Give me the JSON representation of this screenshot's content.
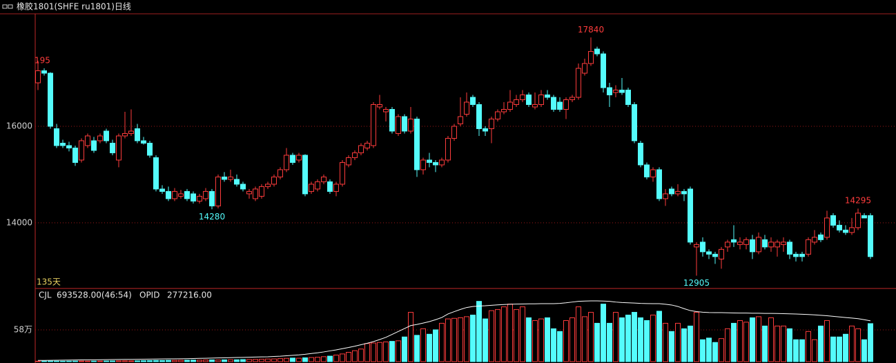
{
  "chart_data": {
    "type": "candlestick",
    "title": "橡胶1801(SHFE ru1801)日线",
    "left_label": "195",
    "period_label": "135天",
    "open": [
      16900,
      17150,
      17100,
      15950,
      15650,
      15600,
      15550,
      15300,
      15600,
      15700,
      15700,
      15900,
      15650,
      15300,
      15800,
      15850,
      15950,
      15700,
      15650,
      15350,
      14700,
      14650,
      14500,
      14550,
      14650,
      14600,
      14450,
      14500,
      14650,
      14350,
      14950,
      14900,
      14900,
      14800,
      14600,
      14500,
      14550,
      14750,
      14800,
      14950,
      15100,
      15400,
      15300,
      15400,
      14650,
      14700,
      14850,
      14850,
      14650,
      14800,
      15200,
      15350,
      15450,
      15550,
      15600,
      16400,
      16300,
      16350,
      15850,
      16200,
      15900,
      16150,
      15100,
      15300,
      15250,
      15200,
      15300,
      15750,
      16050,
      16250,
      16600,
      16450,
      15950,
      15950,
      16150,
      16300,
      16350,
      16450,
      16550,
      16650,
      16400,
      16450,
      16650,
      16600,
      16500,
      16350,
      16550,
      16600,
      17100,
      17300,
      17600,
      17500,
      16800,
      16700,
      16750,
      16750,
      16450,
      15650,
      15200,
      14950,
      15100,
      14500,
      14700,
      14600,
      14650,
      14700,
      13500,
      13600,
      13400,
      13350,
      13250,
      13500,
      13650,
      13550,
      13550,
      13650,
      13400,
      13650,
      13500,
      13500,
      13550,
      13600,
      13350,
      13350,
      13350,
      13600,
      13750,
      13700,
      14150,
      13950,
      13850,
      13800,
      13900,
      14150,
      14150
    ],
    "high": [
      17357,
      17200,
      17120,
      16050,
      15720,
      15680,
      15600,
      15750,
      15850,
      15780,
      15850,
      15950,
      15720,
      15850,
      16300,
      16350,
      16050,
      15780,
      15700,
      15400,
      14780,
      14750,
      14720,
      14680,
      14700,
      14650,
      14600,
      14720,
      14700,
      15000,
      15050,
      15100,
      15000,
      14850,
      14700,
      14750,
      14800,
      14850,
      15000,
      15150,
      15550,
      15450,
      15450,
      15420,
      14850,
      14900,
      15000,
      14900,
      14850,
      15300,
      15400,
      15500,
      15650,
      15700,
      16500,
      16650,
      16400,
      16400,
      16250,
      16250,
      16400,
      16200,
      15350,
      15450,
      15300,
      15350,
      15800,
      16050,
      16600,
      16700,
      16650,
      16500,
      16000,
      16200,
      16350,
      16500,
      16750,
      16650,
      16750,
      16700,
      16700,
      16750,
      16750,
      16650,
      16600,
      16600,
      16650,
      17300,
      17400,
      17840,
      17650,
      17550,
      16900,
      16850,
      17000,
      16800,
      16500,
      15700,
      15250,
      15150,
      15150,
      14700,
      14750,
      14800,
      14700,
      14750,
      13600,
      13700,
      13450,
      13400,
      13500,
      13650,
      13950,
      13700,
      13700,
      13750,
      13800,
      13750,
      13700,
      13650,
      13700,
      13650,
      13400,
      13400,
      13700,
      13850,
      13800,
      14250,
      14200,
      14050,
      13950,
      14100,
      14295,
      14200,
      14200
    ],
    "low": [
      16750,
      17050,
      15950,
      15550,
      15550,
      15480,
      15180,
      15250,
      15550,
      15450,
      15650,
      15650,
      15400,
      15150,
      15750,
      15800,
      15650,
      15620,
      15350,
      14650,
      14600,
      14450,
      14450,
      14500,
      14450,
      14400,
      14400,
      14450,
      14280,
      14300,
      14850,
      14850,
      14750,
      14650,
      14500,
      14450,
      14500,
      14700,
      14750,
      14900,
      15050,
      15200,
      15250,
      14550,
      14600,
      14650,
      14800,
      14600,
      14550,
      14750,
      15150,
      15300,
      15400,
      15500,
      15550,
      16350,
      16100,
      15850,
      15800,
      15850,
      15850,
      14950,
      15000,
      15150,
      15050,
      15150,
      15250,
      15700,
      16000,
      16200,
      16400,
      15800,
      15800,
      15650,
      16100,
      16250,
      16300,
      16400,
      16500,
      16400,
      16350,
      16400,
      16550,
      16300,
      16300,
      16150,
      16500,
      16550,
      17050,
      17250,
      17450,
      16700,
      16400,
      16600,
      16650,
      16400,
      15650,
      15150,
      14900,
      14850,
      14450,
      14350,
      14550,
      14550,
      14450,
      13550,
      12905,
      13300,
      13250,
      13150,
      13050,
      13400,
      13500,
      13450,
      13450,
      13250,
      13350,
      13450,
      13400,
      13300,
      13400,
      13250,
      13200,
      13200,
      13300,
      13550,
      13600,
      13650,
      13900,
      13800,
      13750,
      13750,
      13850,
      14100,
      13250
    ],
    "close": [
      17150,
      17100,
      16000,
      15600,
      15600,
      15550,
      15250,
      15700,
      15800,
      15500,
      15800,
      15700,
      15450,
      15800,
      15850,
      15900,
      15700,
      15650,
      15400,
      14700,
      14650,
      14500,
      14650,
      14600,
      14500,
      14450,
      14550,
      14650,
      14350,
      14950,
      14900,
      14950,
      14800,
      14700,
      14650,
      14700,
      14750,
      14800,
      14950,
      15100,
      15400,
      15250,
      15400,
      14600,
      14800,
      14850,
      14950,
      14650,
      14800,
      15250,
      15350,
      15450,
      15600,
      15650,
      16450,
      16450,
      16350,
      15900,
      16200,
      15900,
      16150,
      15100,
      15300,
      15250,
      15200,
      15300,
      15750,
      16000,
      16200,
      16500,
      16450,
      15950,
      15900,
      16150,
      16300,
      16350,
      16500,
      16550,
      16650,
      16450,
      16450,
      16650,
      16600,
      16350,
      16350,
      16550,
      16600,
      17200,
      17300,
      17550,
      17500,
      16800,
      16650,
      16750,
      16700,
      16450,
      15700,
      15200,
      14950,
      15100,
      14500,
      14600,
      14600,
      14650,
      14600,
      13600,
      13550,
      13400,
      13350,
      13300,
      13450,
      13600,
      13600,
      13600,
      13650,
      13400,
      13700,
      13500,
      13600,
      13600,
      13600,
      13350,
      13300,
      13300,
      13650,
      13700,
      13650,
      14100,
      13950,
      13850,
      13800,
      13900,
      14200,
      14100,
      13300
    ],
    "up_color": "#ff3c3c",
    "down_color": "#54fcfc",
    "ylim": [
      12640,
      18330
    ],
    "yticks": [
      16000,
      14000
    ],
    "grid": true,
    "volume_panel": {
      "ylim": [
        0,
        1310000
      ],
      "yticks": [
        {
          "value": 580000,
          "label": "58万"
        }
      ],
      "y2lim": [
        0,
        488000
      ],
      "series": [
        {
          "name": "CJL",
          "value_label": "693528.00(46:54)",
          "values": [
            8000,
            9000,
            10000,
            9000,
            8000,
            9000,
            10000,
            11000,
            9000,
            10000,
            11000,
            12000,
            13000,
            15000,
            16000,
            14000,
            15000,
            18000,
            20000,
            22000,
            21000,
            24000,
            23000,
            25000,
            26000,
            28000,
            27000,
            30000,
            32000,
            30000,
            33000,
            35000,
            34000,
            38000,
            40000,
            42000,
            45000,
            48000,
            50000,
            55000,
            60000,
            65000,
            62000,
            70000,
            75000,
            80000,
            90000,
            100000,
            120000,
            140000,
            170000,
            200000,
            230000,
            330000,
            340000,
            350000,
            360000,
            370000,
            380000,
            450000,
            900000,
            480000,
            600000,
            500000,
            580000,
            700000,
            780000,
            790000,
            800000,
            820000,
            850000,
            1100000,
            780000,
            930000,
            950000,
            1000000,
            1050000,
            950000,
            1000000,
            800000,
            750000,
            780000,
            800000,
            600000,
            550000,
            750000,
            800000,
            1000000,
            820000,
            900000,
            700000,
            1050000,
            700000,
            900000,
            800000,
            850000,
            900000,
            800000,
            750000,
            850000,
            920000,
            700000,
            550000,
            700000,
            600000,
            650000,
            900000,
            400000,
            430000,
            350000,
            420000,
            600000,
            700000,
            750000,
            720000,
            800000,
            820000,
            650000,
            800000,
            650000,
            650000,
            600000,
            400000,
            400000,
            550000,
            400000,
            650000,
            750000,
            450000,
            450000,
            500000,
            650000,
            600000,
            400000,
            693528
          ]
        },
        {
          "name": "OPID",
          "value_label": "277216.00",
          "color": "#ffffff",
          "axis": "y2",
          "values": [
            8000,
            8500,
            9000,
            9500,
            10000,
            10500,
            11000,
            11500,
            12000,
            12500,
            13000,
            13500,
            14000,
            14500,
            15000,
            15500,
            16000,
            16500,
            17000,
            17500,
            18000,
            18500,
            19000,
            19500,
            20000,
            21000,
            22000,
            23000,
            24000,
            25000,
            26000,
            27000,
            28000,
            29000,
            30000,
            31000,
            32000,
            33000,
            35000,
            37000,
            40000,
            43000,
            46000,
            50000,
            55000,
            60000,
            66000,
            73000,
            80000,
            88000,
            96000,
            105000,
            115000,
            125000,
            136000,
            150000,
            165000,
            185000,
            205000,
            225000,
            245000,
            253000,
            262000,
            272000,
            285000,
            300000,
            324000,
            340000,
            355000,
            368000,
            375000,
            378000,
            380000,
            383000,
            386000,
            388000,
            390000,
            391000,
            392000,
            393000,
            393000,
            394000,
            394000,
            394000,
            396000,
            400000,
            405000,
            410000,
            412000,
            413000,
            413000,
            412000,
            410000,
            405000,
            402000,
            400000,
            398000,
            396000,
            395000,
            394000,
            394000,
            390000,
            385000,
            375000,
            360000,
            347000,
            340000,
            336000,
            334000,
            333000,
            333000,
            332000,
            331000,
            330000,
            330000,
            329000,
            329000,
            328000,
            328000,
            327000,
            326000,
            325000,
            324000,
            322000,
            320000,
            318000,
            315000,
            312000,
            308000,
            304000,
            300000,
            296000,
            292000,
            285000,
            277216
          ]
        }
      ]
    }
  }
}
